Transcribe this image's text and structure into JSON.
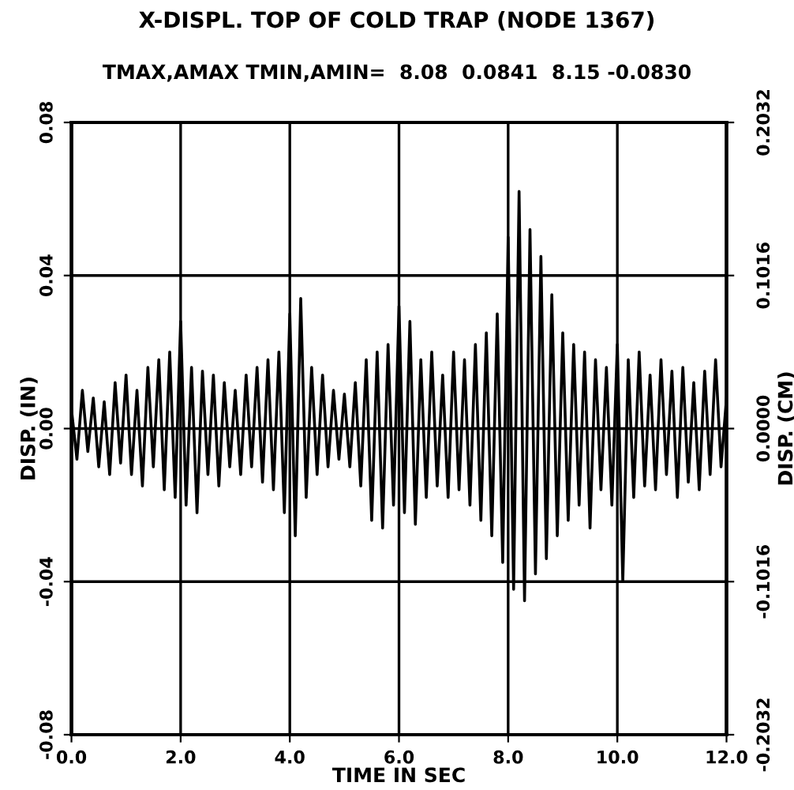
{
  "chart_data": {
    "type": "line",
    "title": "X-DISPL. TOP OF COLD TRAP (NODE 1367)",
    "subtitle": "TMAX,AMAX TMIN,AMIN=  8.08  0.0841  8.15 -0.0830",
    "xlabel": "TIME IN SEC",
    "ylabel": "DISP. (IN)",
    "y2label": "DISP. (CM)",
    "x": [
      0.0,
      0.1,
      0.2,
      0.3,
      0.4,
      0.5,
      0.6,
      0.7,
      0.8,
      0.9,
      1.0,
      1.1,
      1.2,
      1.3,
      1.4,
      1.5,
      1.6,
      1.7,
      1.8,
      1.9,
      2.0,
      2.1,
      2.2,
      2.3,
      2.4,
      2.5,
      2.6,
      2.7,
      2.8,
      2.9,
      3.0,
      3.1,
      3.2,
      3.3,
      3.4,
      3.5,
      3.6,
      3.7,
      3.8,
      3.9,
      4.0,
      4.1,
      4.2,
      4.3,
      4.4,
      4.5,
      4.6,
      4.7,
      4.8,
      4.9,
      5.0,
      5.1,
      5.2,
      5.3,
      5.4,
      5.5,
      5.6,
      5.7,
      5.8,
      5.9,
      6.0,
      6.1,
      6.2,
      6.3,
      6.4,
      6.5,
      6.6,
      6.7,
      6.8,
      6.9,
      7.0,
      7.1,
      7.2,
      7.3,
      7.4,
      7.5,
      7.6,
      7.7,
      7.8,
      7.9,
      8.0,
      8.1,
      8.2,
      8.3,
      8.4,
      8.5,
      8.6,
      8.7,
      8.8,
      8.9,
      9.0,
      9.1,
      9.2,
      9.3,
      9.4,
      9.5,
      9.6,
      9.7,
      9.8,
      9.9,
      10.0,
      10.1,
      10.2,
      10.3,
      10.4,
      10.5,
      10.6,
      10.7,
      10.8,
      10.9,
      11.0,
      11.1,
      11.2,
      11.3,
      11.4,
      11.5,
      11.6,
      11.7,
      11.8,
      11.9,
      12.0
    ],
    "series": [
      {
        "color": "#000000",
        "values": [
          0.005,
          -0.008,
          0.01,
          -0.006,
          0.008,
          -0.01,
          0.007,
          -0.012,
          0.012,
          -0.009,
          0.014,
          -0.012,
          0.01,
          -0.015,
          0.016,
          -0.01,
          0.018,
          -0.016,
          0.02,
          -0.018,
          0.028,
          -0.02,
          0.016,
          -0.022,
          0.015,
          -0.012,
          0.014,
          -0.015,
          0.012,
          -0.01,
          0.01,
          -0.012,
          0.014,
          -0.01,
          0.016,
          -0.014,
          0.018,
          -0.016,
          0.02,
          -0.022,
          0.03,
          -0.028,
          0.034,
          -0.018,
          0.016,
          -0.012,
          0.014,
          -0.01,
          0.01,
          -0.008,
          0.009,
          -0.01,
          0.012,
          -0.015,
          0.018,
          -0.024,
          0.02,
          -0.026,
          0.022,
          -0.02,
          0.032,
          -0.022,
          0.028,
          -0.025,
          0.018,
          -0.018,
          0.02,
          -0.015,
          0.014,
          -0.018,
          0.02,
          -0.016,
          0.018,
          -0.02,
          0.022,
          -0.024,
          0.025,
          -0.028,
          0.03,
          -0.035,
          0.05,
          -0.042,
          0.062,
          -0.045,
          0.052,
          -0.038,
          0.045,
          -0.034,
          0.035,
          -0.028,
          0.025,
          -0.024,
          0.022,
          -0.02,
          0.02,
          -0.026,
          0.018,
          -0.016,
          0.016,
          -0.02,
          0.022,
          -0.04,
          0.018,
          -0.018,
          0.02,
          -0.015,
          0.014,
          -0.016,
          0.018,
          -0.012,
          0.015,
          -0.018,
          0.016,
          -0.014,
          0.012,
          -0.016,
          0.015,
          -0.012,
          0.018,
          -0.01,
          0.008
        ]
      }
    ],
    "xlim": [
      0,
      12
    ],
    "xticks": [
      {
        "value": 0,
        "label": "0.0"
      },
      {
        "value": 2,
        "label": "2.0"
      },
      {
        "value": 4,
        "label": "4.0"
      },
      {
        "value": 6,
        "label": "6.0"
      },
      {
        "value": 8,
        "label": "8.0"
      },
      {
        "value": 10,
        "label": "10.0"
      },
      {
        "value": 12,
        "label": "12.0"
      }
    ],
    "ylim": [
      -0.08,
      0.08
    ],
    "yticks": [
      -0.08,
      -0.04,
      {
        "value": 0,
        "label": "0.00"
      },
      0.04,
      0.08
    ],
    "y2lim": [
      -0.2032,
      0.2032
    ],
    "y2ticks": [
      -0.2032,
      -0.1016,
      {
        "value": 0,
        "label": "0.0000"
      },
      0.1016,
      0.2032
    ],
    "grid": true,
    "marker": "none",
    "line_style": "solid",
    "legend": false
  }
}
